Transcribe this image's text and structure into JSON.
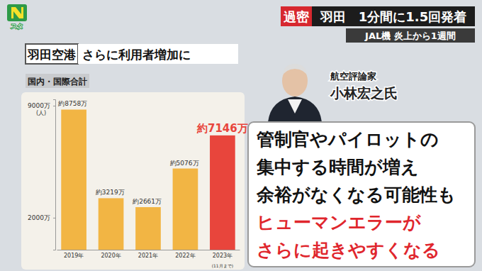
{
  "header": {
    "logo": "スタ",
    "tag": "過密",
    "headline": "羽田　1分間に1.5回発着",
    "subheadline": "JAL機 炎上から1週間"
  },
  "chart_data": {
    "type": "bar",
    "title": "羽田空港",
    "subtitle": "さらに利用者増加に",
    "annotations": [
      "国内・国際合計",
      "(11月まで)"
    ],
    "y_label": "(人)",
    "categories": [
      "2019年",
      "2020年",
      "2021年",
      "2022年",
      "2023年"
    ],
    "values": [
      8758,
      3219,
      2661,
      5076,
      7146
    ],
    "value_labels": [
      "約8758万",
      "約3219万",
      "約2661万",
      "約5076万",
      "約7146万"
    ],
    "colors": [
      "#f2b544",
      "#f2b544",
      "#f2b544",
      "#f2b544",
      "#e8453c"
    ],
    "ylim": [
      0,
      9400
    ],
    "yticks": [
      {
        "value": 2000,
        "label": "2000万"
      },
      {
        "value": 9000,
        "label": "9000万"
      }
    ],
    "data_labels": true
  },
  "commentator": {
    "role": "航空評論家",
    "name": "小林宏之氏"
  },
  "quote": {
    "lines": [
      "管制官やパイロットの",
      "集中する時間が増え",
      "余裕がなくなる可能性も"
    ],
    "emphasis_lines": [
      "ヒューマンエラーが",
      "さらに起きやすくなる"
    ]
  }
}
